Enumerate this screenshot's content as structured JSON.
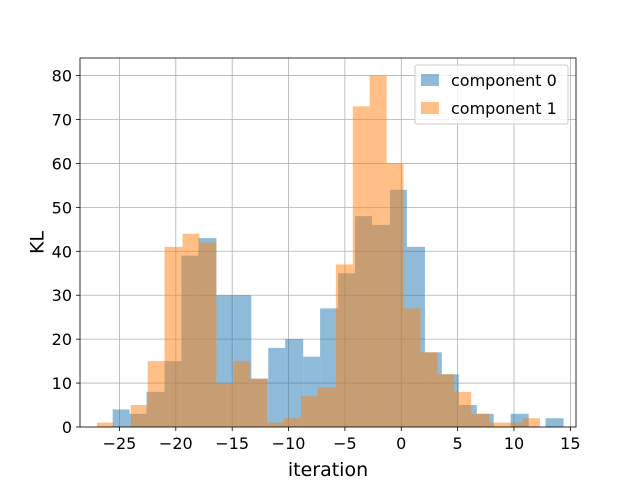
{
  "chart_data": {
    "type": "bar",
    "xlabel": "iteration",
    "ylabel": "KL",
    "xlim": [
      -28.5,
      15.5
    ],
    "ylim": [
      0,
      84
    ],
    "xticks": [
      -25,
      -20,
      -15,
      -10,
      -5,
      0,
      5,
      10,
      15
    ],
    "yticks": [
      0,
      10,
      20,
      30,
      40,
      50,
      60,
      70,
      80
    ],
    "grid": true,
    "legend_position": "top-right",
    "series": [
      {
        "name": "component 0",
        "color": "#1f77b4",
        "opacity": 0.5,
        "bins": [
          {
            "x0": -25.6,
            "x1": -24.1,
            "count": 4
          },
          {
            "x0": -24.1,
            "x1": -22.6,
            "count": 3
          },
          {
            "x0": -22.6,
            "x1": -21.0,
            "count": 8
          },
          {
            "x0": -21.0,
            "x1": -19.5,
            "count": 15
          },
          {
            "x0": -19.5,
            "x1": -18.0,
            "count": 39
          },
          {
            "x0": -18.0,
            "x1": -16.4,
            "count": 43
          },
          {
            "x0": -16.4,
            "x1": -14.9,
            "count": 30
          },
          {
            "x0": -14.9,
            "x1": -13.3,
            "count": 30
          },
          {
            "x0": -13.3,
            "x1": -11.8,
            "count": 11
          },
          {
            "x0": -11.8,
            "x1": -10.3,
            "count": 18
          },
          {
            "x0": -10.3,
            "x1": -8.7,
            "count": 20
          },
          {
            "x0": -8.7,
            "x1": -7.2,
            "count": 16
          },
          {
            "x0": -7.2,
            "x1": -5.6,
            "count": 27
          },
          {
            "x0": -5.6,
            "x1": -4.1,
            "count": 35
          },
          {
            "x0": -4.1,
            "x1": -2.6,
            "count": 48
          },
          {
            "x0": -2.6,
            "x1": -1.0,
            "count": 46
          },
          {
            "x0": -1.0,
            "x1": 0.5,
            "count": 54
          },
          {
            "x0": 0.5,
            "x1": 2.1,
            "count": 41
          },
          {
            "x0": 2.1,
            "x1": 3.6,
            "count": 17
          },
          {
            "x0": 3.6,
            "x1": 5.1,
            "count": 12
          },
          {
            "x0": 5.1,
            "x1": 6.7,
            "count": 5
          },
          {
            "x0": 6.7,
            "x1": 8.2,
            "count": 3
          },
          {
            "x0": 8.2,
            "x1": 9.7,
            "count": 0
          },
          {
            "x0": 9.7,
            "x1": 11.3,
            "count": 3
          },
          {
            "x0": 11.3,
            "x1": 12.8,
            "count": 0
          },
          {
            "x0": 12.8,
            "x1": 14.4,
            "count": 2
          }
        ]
      },
      {
        "name": "component 1",
        "color": "#ff7f0e",
        "opacity": 0.5,
        "bins": [
          {
            "x0": -27.0,
            "x1": -25.5,
            "count": 1
          },
          {
            "x0": -25.5,
            "x1": -24.0,
            "count": 0
          },
          {
            "x0": -24.0,
            "x1": -22.5,
            "count": 5
          },
          {
            "x0": -22.5,
            "x1": -21.0,
            "count": 15
          },
          {
            "x0": -21.0,
            "x1": -19.4,
            "count": 41
          },
          {
            "x0": -19.4,
            "x1": -17.9,
            "count": 44
          },
          {
            "x0": -17.9,
            "x1": -16.4,
            "count": 42
          },
          {
            "x0": -16.4,
            "x1": -14.9,
            "count": 10
          },
          {
            "x0": -14.9,
            "x1": -13.4,
            "count": 15
          },
          {
            "x0": -13.4,
            "x1": -11.9,
            "count": 11
          },
          {
            "x0": -11.9,
            "x1": -10.4,
            "count": 1
          },
          {
            "x0": -10.4,
            "x1": -8.9,
            "count": 2
          },
          {
            "x0": -8.9,
            "x1": -7.4,
            "count": 7
          },
          {
            "x0": -7.4,
            "x1": -5.8,
            "count": 9
          },
          {
            "x0": -5.8,
            "x1": -4.3,
            "count": 37
          },
          {
            "x0": -4.3,
            "x1": -2.8,
            "count": 73
          },
          {
            "x0": -2.8,
            "x1": -1.3,
            "count": 80
          },
          {
            "x0": -1.3,
            "x1": 0.2,
            "count": 60
          },
          {
            "x0": 0.2,
            "x1": 1.7,
            "count": 27
          },
          {
            "x0": 1.7,
            "x1": 3.2,
            "count": 17
          },
          {
            "x0": 3.2,
            "x1": 4.7,
            "count": 12
          },
          {
            "x0": 4.7,
            "x1": 6.2,
            "count": 8
          },
          {
            "x0": 6.2,
            "x1": 7.8,
            "count": 3
          },
          {
            "x0": 7.8,
            "x1": 9.3,
            "count": 1
          },
          {
            "x0": 9.3,
            "x1": 10.8,
            "count": 1
          },
          {
            "x0": 10.8,
            "x1": 12.3,
            "count": 2
          }
        ]
      }
    ]
  }
}
